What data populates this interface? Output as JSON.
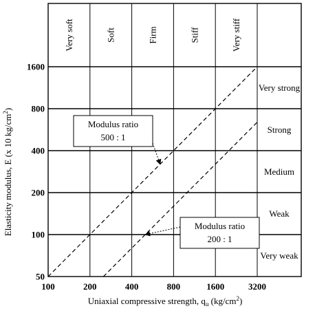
{
  "chart_data": {
    "type": "line",
    "xlabel_main": "Uniaxial compressive strength, q",
    "xlabel_sub": "u",
    "xlabel_unit": " (kg/cm",
    "xlabel_sup": "2",
    "xlabel_end": ")",
    "ylabel_main": "Elasticity modulus, E (x 10 kg/cm",
    "ylabel_sup": "2",
    "ylabel_end": ")",
    "x_scale": "log",
    "y_scale": "log",
    "xlim": [
      100,
      3200
    ],
    "ylim": [
      50,
      1600
    ],
    "x_ticks": [
      {
        "value": 100,
        "label": "100"
      },
      {
        "value": 200,
        "label": "200"
      },
      {
        "value": 400,
        "label": "400"
      },
      {
        "value": 800,
        "label": "800"
      },
      {
        "value": 1600,
        "label": "1600"
      },
      {
        "value": 3200,
        "label": "3200"
      }
    ],
    "y_ticks": [
      {
        "value": 50,
        "label": "50"
      },
      {
        "value": 100,
        "label": "100"
      },
      {
        "value": 200,
        "label": "200"
      },
      {
        "value": 400,
        "label": "400"
      },
      {
        "value": 800,
        "label": "800"
      },
      {
        "value": 1600,
        "label": "1600"
      }
    ],
    "strength_classes": [
      "Very soft",
      "Soft",
      "Firm",
      "Stiff",
      "Very stiff"
    ],
    "modulus_classes": [
      "Very strong",
      "Strong",
      "Medium",
      "Weak",
      "Very weak"
    ],
    "series": [
      {
        "name": "Modulus ratio 500 : 1",
        "line1": "Modulus ratio",
        "line2": "500 : 1",
        "ratio": 500,
        "x": [
          100,
          3200
        ],
        "y": [
          50,
          1600
        ]
      },
      {
        "name": "Modulus ratio 200 : 1",
        "line1": "Modulus ratio",
        "line2": "200 : 1",
        "ratio": 200,
        "x": [
          250,
          3200
        ],
        "y": [
          50,
          640
        ]
      }
    ],
    "grid": true
  }
}
